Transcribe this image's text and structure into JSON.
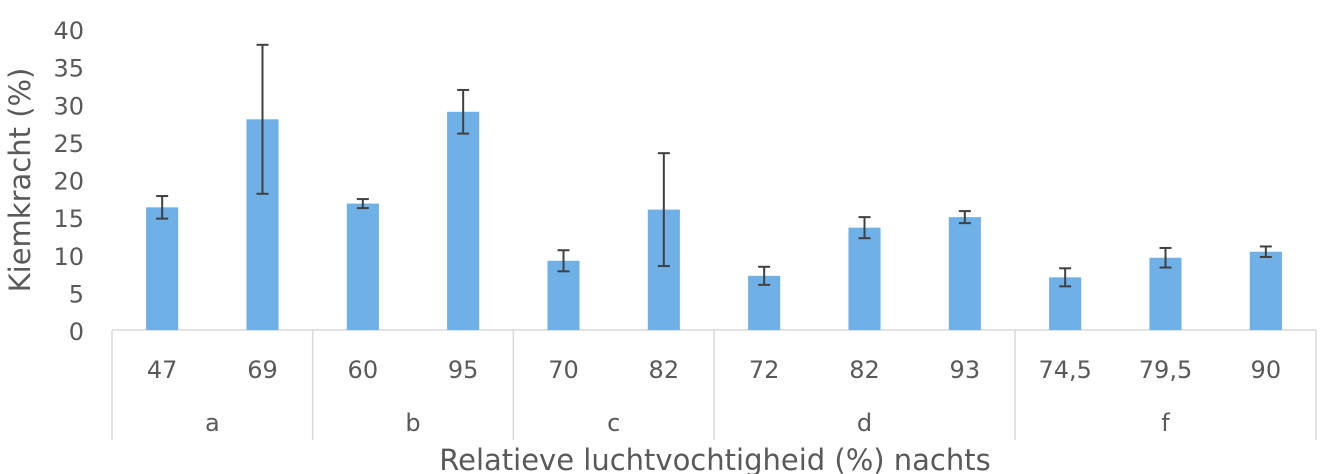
{
  "chart_data": {
    "type": "bar",
    "title": "",
    "xlabel": "Relatieve luchtvochtigheid (%) nachts",
    "ylabel": "Kiemkracht (%)",
    "ylim": [
      0,
      40
    ],
    "yticks": [
      0,
      5,
      10,
      15,
      20,
      25,
      30,
      35,
      40
    ],
    "grid": false,
    "legend": "none",
    "bar_color": "#6FB0E6",
    "error_bar_color": "#404040",
    "groups": [
      {
        "label": "a",
        "categories": [
          "47",
          "69"
        ],
        "values": [
          16.3,
          28.0
        ],
        "errors": [
          1.5,
          9.9
        ]
      },
      {
        "label": "b",
        "categories": [
          "60",
          "95"
        ],
        "values": [
          16.8,
          29.0
        ],
        "errors": [
          0.6,
          2.9
        ]
      },
      {
        "label": "c",
        "categories": [
          "70",
          "82"
        ],
        "values": [
          9.2,
          16.0
        ],
        "errors": [
          1.4,
          7.5
        ]
      },
      {
        "label": "d",
        "categories": [
          "72",
          "82",
          "93"
        ],
        "values": [
          7.2,
          13.6,
          15.0
        ],
        "errors": [
          1.2,
          1.4,
          0.8
        ]
      },
      {
        "label": "f",
        "categories": [
          "74,5",
          "79,5",
          "90"
        ],
        "values": [
          7.0,
          9.6,
          10.4
        ],
        "errors": [
          1.2,
          1.3,
          0.7
        ]
      }
    ]
  }
}
